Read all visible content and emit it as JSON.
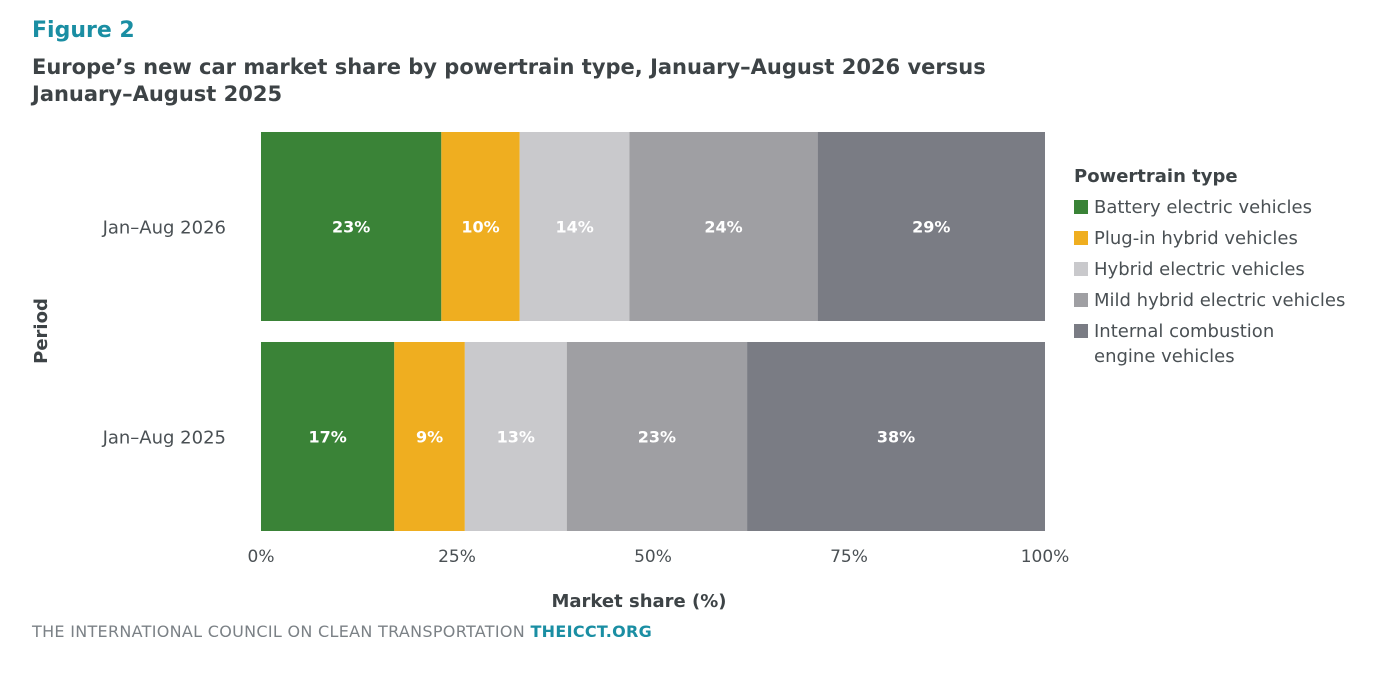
{
  "figure_label": "Figure 2",
  "title": "Europe’s new car market share by powertrain type, January–August 2026 versus January–August 2025",
  "footer": {
    "text": "THE INTERNATIONAL COUNCIL ON CLEAN TRANSPORTATION",
    "org": "THEICCT.ORG"
  },
  "chart_data": {
    "type": "bar",
    "orientation": "horizontal",
    "stacked": true,
    "categories": [
      "Jan–Aug 2026",
      "Jan–Aug 2025"
    ],
    "series": [
      {
        "name": "Battery electric vehicles",
        "values": [
          23,
          17
        ],
        "labels": [
          "23%",
          "17%"
        ],
        "color": "#3a8337"
      },
      {
        "name": "Plug-in hybrid vehicles",
        "values": [
          10,
          9
        ],
        "labels": [
          "10%",
          "9%"
        ],
        "color": "#efae20"
      },
      {
        "name": "Hybrid electric vehicles",
        "values": [
          14,
          13
        ],
        "labels": [
          "14%",
          "13%"
        ],
        "color": "#c9c9cc"
      },
      {
        "name": "Mild hybrid electric vehicles",
        "values": [
          24,
          23
        ],
        "labels": [
          "24%",
          "23%"
        ],
        "color": "#9f9fa3"
      },
      {
        "name": "Internal combustion engine vehicles",
        "values": [
          29,
          38
        ],
        "labels": [
          "29%",
          "38%"
        ],
        "color": "#7a7c84"
      }
    ],
    "xlabel": "Market share (%)",
    "ylabel": "Period",
    "xlim": [
      0,
      100
    ],
    "xticks": [
      0,
      25,
      50,
      75,
      100
    ],
    "xtick_labels": [
      "0%",
      "25%",
      "50%",
      "75%",
      "100%"
    ],
    "legend_title": "Powertrain type",
    "legend_position": "right",
    "grid": false
  }
}
